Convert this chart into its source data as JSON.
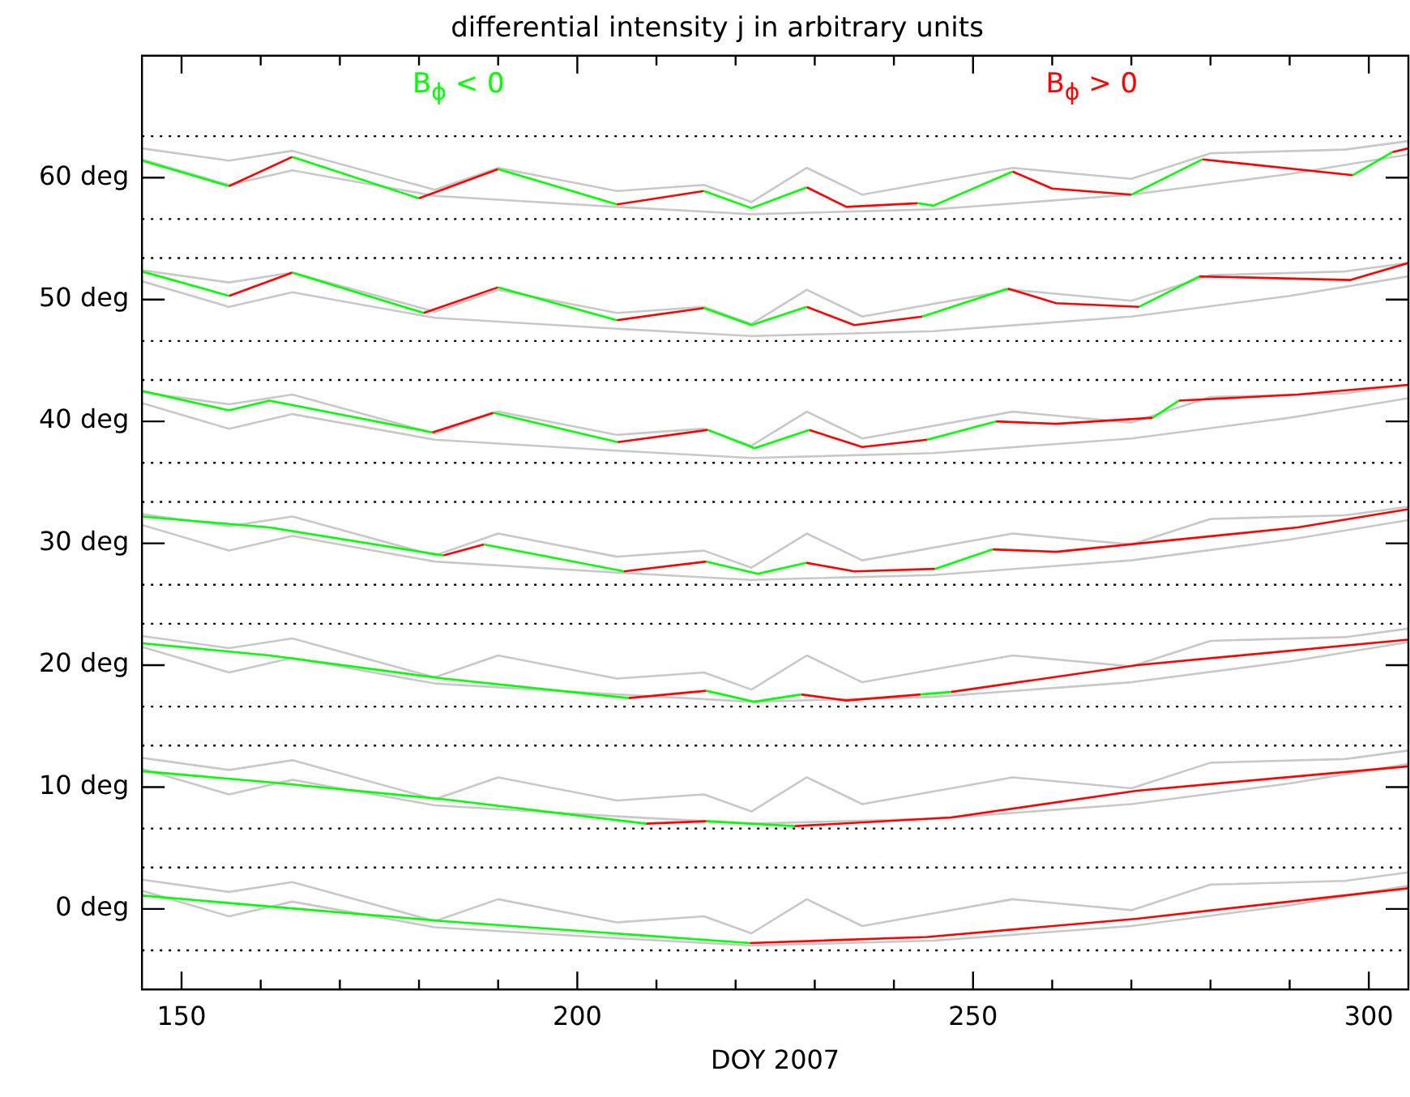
{
  "chart_data": {
    "type": "line",
    "title": "differential intensity j in arbitrary units",
    "xlabel": "DOY 2007",
    "xlim": [
      145,
      305
    ],
    "ylim": [
      -6.6,
      70
    ],
    "xticks": [
      150,
      {
        "value": 160,
        "label": null
      },
      {
        "value": 170,
        "label": null
      },
      {
        "value": 180,
        "label": null
      },
      {
        "value": 190,
        "label": null
      },
      200,
      {
        "value": 210,
        "label": null
      },
      {
        "value": 220,
        "label": null
      },
      {
        "value": 230,
        "label": null
      },
      {
        "value": 240,
        "label": null
      },
      250,
      {
        "value": 260,
        "label": null
      },
      {
        "value": 270,
        "label": null
      },
      {
        "value": 280,
        "label": null
      },
      {
        "value": 290,
        "label": null
      },
      300
    ],
    "yticks": [
      {
        "value": 0,
        "label": "0 deg"
      },
      {
        "value": 10,
        "label": "10 deg"
      },
      {
        "value": 20,
        "label": "20 deg"
      },
      {
        "value": 30,
        "label": "30 deg"
      },
      {
        "value": 40,
        "label": "40 deg"
      },
      {
        "value": 50,
        "label": "50 deg"
      },
      {
        "value": 60,
        "label": "60 deg"
      }
    ],
    "legend": "top",
    "ref_lines": [
      {
        "axis": "y",
        "value": 63.4,
        "color": "#000000",
        "line_style": "dotted"
      },
      {
        "axis": "y",
        "value": 56.6,
        "color": "#000000",
        "line_style": "dotted"
      },
      {
        "axis": "y",
        "value": 53.4,
        "color": "#000000",
        "line_style": "dotted"
      },
      {
        "axis": "y",
        "value": 46.6,
        "color": "#000000",
        "line_style": "dotted"
      },
      {
        "axis": "y",
        "value": 43.4,
        "color": "#000000",
        "line_style": "dotted"
      },
      {
        "axis": "y",
        "value": 36.6,
        "color": "#000000",
        "line_style": "dotted"
      },
      {
        "axis": "y",
        "value": 33.4,
        "color": "#000000",
        "line_style": "dotted"
      },
      {
        "axis": "y",
        "value": 26.6,
        "color": "#000000",
        "line_style": "dotted"
      },
      {
        "axis": "y",
        "value": 23.4,
        "color": "#000000",
        "line_style": "dotted"
      },
      {
        "axis": "y",
        "value": 16.6,
        "color": "#000000",
        "line_style": "dotted"
      },
      {
        "axis": "y",
        "value": 13.4,
        "color": "#000000",
        "line_style": "dotted"
      },
      {
        "axis": "y",
        "value": 6.6,
        "color": "#000000",
        "line_style": "dotted"
      },
      {
        "axis": "y",
        "value": 3.4,
        "color": "#000000",
        "line_style": "dotted"
      },
      {
        "axis": "y",
        "value": -3.4,
        "color": "#000000",
        "line_style": "dotted"
      }
    ],
    "series": [
      {
        "color": "#c8c8c8",
        "x": [
          145,
          156,
          164,
          182,
          190,
          205,
          216,
          222,
          229,
          236,
          255,
          270,
          280,
          297,
          305
        ],
        "values": [
          62.4,
          61.4,
          62.2,
          59.0,
          60.8,
          58.9,
          59.4,
          58.0,
          60.8,
          58.6,
          60.8,
          59.9,
          62.0,
          62.3,
          63.0
        ]
      },
      {
        "color": "#c8c8c8",
        "x": [
          145,
          156,
          164,
          182,
          205,
          222,
          245,
          270,
          290,
          305
        ],
        "values": [
          61.5,
          59.4,
          60.6,
          58.5,
          57.6,
          57.0,
          57.4,
          58.6,
          60.3,
          61.9
        ]
      },
      {
        "color": "#c8c8c8",
        "x": [
          145,
          156,
          164,
          182,
          190,
          205,
          216,
          222,
          229,
          236,
          255,
          270,
          280,
          297,
          305
        ],
        "values": [
          52.4,
          51.4,
          52.2,
          49.0,
          50.8,
          48.9,
          49.4,
          48.0,
          50.8,
          48.6,
          50.8,
          49.9,
          52.0,
          52.3,
          53.0
        ]
      },
      {
        "color": "#c8c8c8",
        "x": [
          145,
          156,
          164,
          182,
          205,
          222,
          245,
          270,
          290,
          305
        ],
        "values": [
          51.5,
          49.4,
          50.6,
          48.5,
          47.6,
          47.0,
          47.4,
          48.6,
          50.3,
          51.9
        ]
      },
      {
        "color": "#c8c8c8",
        "x": [
          145,
          156,
          164,
          182,
          190,
          205,
          216,
          222,
          229,
          236,
          255,
          270,
          280,
          297,
          305
        ],
        "values": [
          42.4,
          41.4,
          42.2,
          39.0,
          40.8,
          38.9,
          39.4,
          38.0,
          40.8,
          38.6,
          40.8,
          39.9,
          42.0,
          42.3,
          43.0
        ]
      },
      {
        "color": "#c8c8c8",
        "x": [
          145,
          156,
          164,
          182,
          205,
          222,
          245,
          270,
          290,
          305
        ],
        "values": [
          41.5,
          39.4,
          40.6,
          38.5,
          37.6,
          37.0,
          37.4,
          38.6,
          40.3,
          41.9
        ]
      },
      {
        "color": "#c8c8c8",
        "x": [
          145,
          156,
          164,
          182,
          190,
          205,
          216,
          222,
          229,
          236,
          255,
          270,
          280,
          297,
          305
        ],
        "values": [
          32.4,
          31.4,
          32.2,
          29.0,
          30.8,
          28.9,
          29.4,
          28.0,
          30.8,
          28.6,
          30.8,
          29.9,
          32.0,
          32.3,
          33.0
        ]
      },
      {
        "color": "#c8c8c8",
        "x": [
          145,
          156,
          164,
          182,
          205,
          222,
          245,
          270,
          290,
          305
        ],
        "values": [
          31.5,
          29.4,
          30.6,
          28.5,
          27.6,
          27.0,
          27.4,
          28.6,
          30.3,
          31.9
        ]
      },
      {
        "color": "#c8c8c8",
        "x": [
          145,
          156,
          164,
          182,
          190,
          205,
          216,
          222,
          229,
          236,
          255,
          270,
          280,
          297,
          305
        ],
        "values": [
          22.4,
          21.4,
          22.2,
          19.0,
          20.8,
          18.9,
          19.4,
          18.0,
          20.8,
          18.6,
          20.8,
          19.9,
          22.0,
          22.3,
          23.0
        ]
      },
      {
        "color": "#c8c8c8",
        "x": [
          145,
          156,
          164,
          182,
          205,
          222,
          245,
          270,
          290,
          305
        ],
        "values": [
          21.5,
          19.4,
          20.6,
          18.5,
          17.6,
          17.0,
          17.4,
          18.6,
          20.3,
          21.9
        ]
      },
      {
        "color": "#c8c8c8",
        "x": [
          145,
          156,
          164,
          182,
          190,
          205,
          216,
          222,
          229,
          236,
          255,
          270,
          280,
          297,
          305
        ],
        "values": [
          12.4,
          11.4,
          12.2,
          9.0,
          10.8,
          8.9,
          9.4,
          8.0,
          10.8,
          8.6,
          10.8,
          9.9,
          12.0,
          12.3,
          13.0
        ]
      },
      {
        "color": "#c8c8c8",
        "x": [
          145,
          156,
          164,
          182,
          205,
          222,
          245,
          270,
          290,
          305
        ],
        "values": [
          11.5,
          9.4,
          10.6,
          8.5,
          7.6,
          7.0,
          7.4,
          8.6,
          10.3,
          11.9
        ]
      },
      {
        "color": "#c8c8c8",
        "x": [
          145,
          156,
          164,
          182,
          190,
          205,
          216,
          222,
          229,
          236,
          255,
          270,
          280,
          297,
          305
        ],
        "values": [
          2.4,
          1.4,
          2.2,
          -1.0,
          0.8,
          -1.1,
          -0.6,
          -2.0,
          0.8,
          -1.4,
          0.8,
          -0.1,
          2.0,
          2.3,
          3.0
        ]
      },
      {
        "color": "#c8c8c8",
        "x": [
          145,
          156,
          164,
          182,
          205,
          222,
          245,
          270,
          290,
          305
        ],
        "values": [
          1.5,
          -0.6,
          0.6,
          -1.5,
          -2.4,
          -3.0,
          -2.6,
          -1.4,
          0.3,
          1.9
        ]
      },
      {
        "name": "B$_{ϕ}$ < 0",
        "color": "#00ff00",
        "x": [
          145,
          156
        ],
        "values": [
          61.4,
          59.3
        ]
      },
      {
        "name": "B$_{ϕ}$ > 0",
        "color": "#ff0000",
        "x": [
          156,
          164
        ],
        "values": [
          59.3,
          61.7
        ]
      },
      {
        "color": "#00ff00",
        "x": [
          164,
          180
        ],
        "values": [
          61.7,
          58.3
        ]
      },
      {
        "color": "#ff0000",
        "x": [
          180,
          190
        ],
        "values": [
          58.3,
          60.7
        ]
      },
      {
        "color": "#00ff00",
        "x": [
          190,
          205
        ],
        "values": [
          60.7,
          57.8
        ]
      },
      {
        "color": "#ff0000",
        "x": [
          205,
          216
        ],
        "values": [
          57.8,
          58.9
        ]
      },
      {
        "color": "#00ff00",
        "x": [
          216,
          222,
          229
        ],
        "values": [
          58.9,
          57.5,
          59.2
        ]
      },
      {
        "color": "#ff0000",
        "x": [
          229,
          234,
          243
        ],
        "values": [
          59.2,
          57.6,
          57.9
        ]
      },
      {
        "color": "#00ff00",
        "x": [
          243,
          245,
          255
        ],
        "values": [
          57.9,
          57.7,
          60.5
        ]
      },
      {
        "color": "#ff0000",
        "x": [
          255,
          260,
          270
        ],
        "values": [
          60.5,
          59.1,
          58.6
        ]
      },
      {
        "color": "#00ff00",
        "x": [
          270,
          279
        ],
        "values": [
          58.6,
          61.5
        ]
      },
      {
        "color": "#ff0000",
        "x": [
          279,
          298
        ],
        "values": [
          61.5,
          60.2
        ]
      },
      {
        "color": "#00ff00",
        "x": [
          298,
          303
        ],
        "values": [
          60.2,
          62.1
        ]
      },
      {
        "color": "#ff0000",
        "x": [
          303,
          305
        ],
        "values": [
          62.1,
          62.4
        ]
      },
      {
        "color": "#00ff00",
        "x": [
          145,
          156
        ],
        "values": [
          52.3,
          50.3
        ]
      },
      {
        "color": "#ff0000",
        "x": [
          156,
          164
        ],
        "values": [
          50.3,
          52.2
        ]
      },
      {
        "color": "#00ff00",
        "x": [
          164,
          180.6
        ],
        "values": [
          52.2,
          48.9
        ]
      },
      {
        "color": "#ff0000",
        "x": [
          180.6,
          190
        ],
        "values": [
          48.9,
          51.0
        ]
      },
      {
        "color": "#00ff00",
        "x": [
          190,
          205
        ],
        "values": [
          51.0,
          48.3
        ]
      },
      {
        "color": "#ff0000",
        "x": [
          205,
          216
        ],
        "values": [
          48.3,
          49.3
        ]
      },
      {
        "color": "#00ff00",
        "x": [
          216,
          222,
          229
        ],
        "values": [
          49.3,
          47.9,
          49.4
        ]
      },
      {
        "color": "#ff0000",
        "x": [
          229,
          235,
          243.6
        ],
        "values": [
          49.4,
          47.9,
          48.6
        ]
      },
      {
        "color": "#00ff00",
        "x": [
          243.6,
          254.4
        ],
        "values": [
          48.6,
          50.9
        ]
      },
      {
        "color": "#ff0000",
        "x": [
          254.4,
          260.5,
          271
        ],
        "values": [
          50.9,
          49.7,
          49.4
        ]
      },
      {
        "color": "#00ff00",
        "x": [
          271,
          278.6
        ],
        "values": [
          49.4,
          51.9
        ]
      },
      {
        "color": "#ff0000",
        "x": [
          278.6,
          297.7,
          305
        ],
        "values": [
          51.9,
          51.6,
          53.0
        ]
      },
      {
        "color": "#00ff00",
        "x": [
          145,
          156,
          161.1,
          181.7
        ],
        "values": [
          42.5,
          40.9,
          41.7,
          39.1
        ]
      },
      {
        "color": "#ff0000",
        "x": [
          181.7,
          189.4
        ],
        "values": [
          39.1,
          40.7
        ]
      },
      {
        "color": "#00ff00",
        "x": [
          189.4,
          205.1
        ],
        "values": [
          40.7,
          38.3
        ]
      },
      {
        "color": "#ff0000",
        "x": [
          205.1,
          216.5
        ],
        "values": [
          38.3,
          39.3
        ]
      },
      {
        "color": "#00ff00",
        "x": [
          216.5,
          222.4,
          229.3
        ],
        "values": [
          39.3,
          37.8,
          39.3
        ]
      },
      {
        "color": "#ff0000",
        "x": [
          229.3,
          236,
          244.2
        ],
        "values": [
          39.3,
          37.9,
          38.5
        ]
      },
      {
        "color": "#00ff00",
        "x": [
          244.2,
          252.9
        ],
        "values": [
          38.5,
          40.0
        ]
      },
      {
        "color": "#ff0000",
        "x": [
          252.9,
          260.5,
          272.7
        ],
        "values": [
          40.0,
          39.8,
          40.3
        ]
      },
      {
        "color": "#00ff00",
        "x": [
          272.7,
          276
        ],
        "values": [
          40.3,
          41.7
        ]
      },
      {
        "color": "#ff0000",
        "x": [
          276,
          291,
          305
        ],
        "values": [
          41.7,
          42.2,
          43.0
        ]
      },
      {
        "color": "#00ff00",
        "x": [
          145,
          161.1,
          183.1
        ],
        "values": [
          32.2,
          31.3,
          29.0
        ]
      },
      {
        "color": "#ff0000",
        "x": [
          183.1,
          188.2
        ],
        "values": [
          29.0,
          29.9
        ]
      },
      {
        "color": "#00ff00",
        "x": [
          188.2,
          205.9
        ],
        "values": [
          29.9,
          27.7
        ]
      },
      {
        "color": "#ff0000",
        "x": [
          205.9,
          216.3
        ],
        "values": [
          27.7,
          28.5
        ]
      },
      {
        "color": "#00ff00",
        "x": [
          216.3,
          222.8,
          228.9
        ],
        "values": [
          28.5,
          27.5,
          28.4
        ]
      },
      {
        "color": "#ff0000",
        "x": [
          228.9,
          235,
          245.2
        ],
        "values": [
          28.4,
          27.7,
          27.9
        ]
      },
      {
        "color": "#00ff00",
        "x": [
          245.2,
          252.5
        ],
        "values": [
          27.9,
          29.5
        ]
      },
      {
        "color": "#ff0000",
        "x": [
          252.5,
          260.5,
          291,
          305
        ],
        "values": [
          29.5,
          29.3,
          31.3,
          32.8
        ]
      },
      {
        "color": "#00ff00",
        "x": [
          145,
          161.1,
          183.1,
          206.5
        ],
        "values": [
          21.8,
          20.8,
          18.9,
          17.3
        ]
      },
      {
        "color": "#ff0000",
        "x": [
          206.5,
          216.3
        ],
        "values": [
          17.3,
          17.9
        ]
      },
      {
        "color": "#00ff00",
        "x": [
          216.3,
          222.4,
          228.3
        ],
        "values": [
          17.9,
          17.0,
          17.6
        ]
      },
      {
        "color": "#ff0000",
        "x": [
          228.3,
          234,
          243.4
        ],
        "values": [
          17.6,
          17.1,
          17.6
        ]
      },
      {
        "color": "#00ff00",
        "x": [
          243.4,
          247.2
        ],
        "values": [
          17.6,
          17.8
        ]
      },
      {
        "color": "#ff0000",
        "x": [
          247.2,
          270.7,
          305
        ],
        "values": [
          17.8,
          20.0,
          22.1
        ]
      },
      {
        "color": "#00ff00",
        "x": [
          145,
          161.1,
          183.1,
          208.7
        ],
        "values": [
          11.3,
          10.4,
          9.0,
          7.0
        ]
      },
      {
        "color": "#ff0000",
        "x": [
          208.7,
          216.3
        ],
        "values": [
          7.0,
          7.2
        ]
      },
      {
        "color": "#00ff00",
        "x": [
          216.3,
          227.5
        ],
        "values": [
          7.2,
          6.8
        ]
      },
      {
        "color": "#ff0000",
        "x": [
          227.5,
          247.2,
          270.7,
          305
        ],
        "values": [
          6.8,
          7.5,
          9.7,
          11.7
        ]
      },
      {
        "color": "#00ff00",
        "x": [
          145,
          161.1,
          183.1,
          221.8
        ],
        "values": [
          1.1,
          0.2,
          -1.0,
          -2.8
        ]
      },
      {
        "color": "#ff0000",
        "x": [
          221.8,
          244.2,
          270.7,
          305
        ],
        "values": [
          -2.8,
          -2.3,
          -0.8,
          1.7
        ]
      }
    ]
  }
}
